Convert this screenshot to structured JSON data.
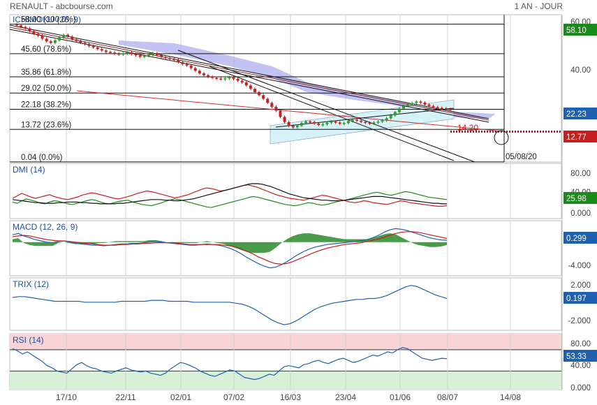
{
  "header": {
    "left": "RENAULT - abcbourse.com",
    "right": "1 AN - JOUR"
  },
  "colors": {
    "grid": "#d0d0d0",
    "axis_text": "#444444",
    "green": "#1a8a1a",
    "red": "#c81e1e",
    "blue": "#2060b0",
    "black": "#111111",
    "cloud": "#a8a8ee",
    "channel": "#d6f3f8",
    "rsi_high": "#f8d4d4",
    "rsi_low": "#d8efd8"
  },
  "x_axis": {
    "labels": [
      "17/10",
      "22/11",
      "02/01",
      "07/02",
      "16/03",
      "23/04",
      "01/06",
      "08/07",
      "14/08"
    ]
  },
  "chart_data": [
    {
      "type": "line",
      "title": "ICHIMOKU (26, 9)",
      "ylim": [
        0,
        62
      ],
      "y_ticks": [
        "60.00",
        "40.00"
      ],
      "price_badge_top": "58.10",
      "price_badge_current": "22.23",
      "price_badge_target": "12.77",
      "fibonacci": [
        {
          "price": 58.0,
          "label": "58.00  (100.0%)"
        },
        {
          "price": 45.6,
          "label": "45.60  (78.6%)"
        },
        {
          "price": 35.86,
          "label": "35.86  (61.8%)"
        },
        {
          "price": 29.02,
          "label": "29.02  (50.0%)"
        },
        {
          "price": 22.18,
          "label": "22.18  (38.2%)"
        },
        {
          "price": 13.72,
          "label": "13.72  (23.6%)"
        },
        {
          "price": 0.04,
          "label": "0.04  (0.0%)"
        }
      ],
      "annotation_value": "14.20",
      "annotation_date": "05/08/20",
      "price_series": [
        58,
        57.5,
        56.8,
        56.2,
        55.1,
        54.0,
        53.2,
        51.9,
        50.8,
        50.1,
        51.2,
        52.4,
        53.5,
        52.8,
        51.6,
        50.9,
        50.2,
        49.6,
        48.8,
        48.2,
        47.5,
        46.9,
        46.3,
        46.0,
        45.6,
        45.2,
        45.7,
        46.1,
        45.4,
        44.9,
        44.3,
        44.6,
        45.1,
        45.8,
        45.0,
        44.2,
        43.8,
        43.4,
        42.9,
        42.0,
        41.2,
        40.6,
        39.5,
        38.4,
        37.3,
        36.5,
        35.9,
        35.4,
        35.1,
        34.8,
        35.2,
        35.6,
        35.0,
        34.2,
        33.5,
        32.2,
        30.8,
        29.4,
        28.1,
        26.6,
        24.9,
        23.2,
        21.6,
        19.0,
        16.8,
        15.2,
        14.6,
        15.3,
        16.4,
        17.1,
        16.8,
        16.2,
        15.6,
        15.9,
        16.5,
        17.0,
        16.6,
        16.1,
        16.4,
        17.2,
        17.8,
        17.4,
        16.9,
        16.5,
        16.2,
        16.6,
        17.0,
        17.5,
        18.4,
        19.6,
        21.0,
        22.5,
        23.6,
        24.3,
        24.8,
        25.4,
        25.0,
        24.2,
        23.6,
        23.1,
        22.8,
        22.6,
        22.3,
        22.2
      ]
    },
    {
      "type": "line",
      "title": "DMI (14)",
      "ylim": [
        -5,
        85
      ],
      "y_ticks": [
        "80.00",
        "40.00",
        "0.000"
      ],
      "badge": "25.98",
      "series": [
        {
          "name": "DMI+",
          "color": "green",
          "values": [
            22,
            20,
            24,
            27,
            25,
            23,
            20,
            19,
            22,
            24,
            23,
            21,
            19,
            18,
            20,
            22,
            24,
            26,
            25,
            22,
            20,
            19,
            21,
            23,
            24,
            25,
            22,
            20,
            18,
            17,
            16,
            18,
            20,
            23,
            25,
            27,
            26,
            24,
            22,
            20,
            18,
            16,
            14,
            13,
            15,
            17,
            19,
            21,
            23,
            25,
            27,
            29,
            31,
            30,
            28,
            26,
            24,
            22,
            20,
            18,
            17,
            16,
            17,
            19,
            21,
            20,
            18,
            17,
            18,
            20,
            22,
            24,
            25,
            27,
            29,
            31,
            33,
            35,
            37,
            38,
            36,
            34,
            33,
            35,
            37,
            39,
            38,
            36,
            34,
            32,
            30,
            29,
            28,
            27,
            26
          ]
        },
        {
          "name": "DMI-",
          "color": "red",
          "values": [
            28,
            32,
            36,
            33,
            30,
            28,
            30,
            32,
            34,
            31,
            29,
            27,
            26,
            28,
            30,
            33,
            35,
            37,
            36,
            34,
            32,
            30,
            28,
            27,
            29,
            31,
            33,
            36,
            38,
            40,
            39,
            37,
            35,
            33,
            31,
            29,
            30,
            32,
            34,
            37,
            40,
            43,
            45,
            44,
            42,
            40,
            41,
            43,
            45,
            47,
            49,
            50,
            48,
            46,
            43,
            40,
            37,
            34,
            32,
            30,
            28,
            27,
            26,
            25,
            27,
            29,
            31,
            33,
            32,
            30,
            28,
            26,
            24,
            22,
            21,
            22,
            24,
            23,
            21,
            20,
            19,
            18,
            20,
            22,
            24,
            23,
            21,
            20,
            19,
            18,
            17,
            16,
            15,
            15,
            16
          ]
        },
        {
          "name": "ADX",
          "color": "black",
          "values": [
            26,
            25,
            24,
            23,
            22,
            21,
            21,
            20,
            20,
            20,
            21,
            21,
            22,
            22,
            22,
            21,
            21,
            20,
            20,
            19,
            19,
            19,
            19,
            20,
            20,
            21,
            22,
            23,
            24,
            25,
            26,
            26,
            26,
            25,
            25,
            24,
            24,
            25,
            26,
            27,
            29,
            31,
            33,
            35,
            37,
            39,
            41,
            43,
            45,
            47,
            49,
            51,
            52,
            52,
            51,
            49,
            47,
            44,
            41,
            38,
            35,
            33,
            31,
            29,
            28,
            27,
            26,
            25,
            25,
            24,
            24,
            24,
            25,
            26,
            27,
            28,
            29,
            30,
            31,
            31,
            31,
            30,
            29,
            28,
            27,
            26,
            25,
            24,
            23,
            22,
            21,
            20,
            20,
            19,
            19
          ]
        }
      ]
    },
    {
      "type": "area",
      "title": "MACD (12, 26, 9)",
      "ylim": [
        -5.5,
        3.5
      ],
      "y_ticks": [
        "0.299",
        "-4.000"
      ],
      "badge": "0.299",
      "series": [
        {
          "name": "MACD",
          "color": "blue",
          "values": [
            1.2,
            1.4,
            1.0,
            0.7,
            0.4,
            0.2,
            0.0,
            -0.1,
            0.1,
            0.2,
            0.0,
            -0.2,
            -0.3,
            -0.4,
            -0.5,
            -0.5,
            -0.6,
            -0.5,
            -0.4,
            -0.3,
            -0.3,
            -0.2,
            -0.2,
            -0.1,
            0.0,
            0.1,
            0.0,
            -0.1,
            -0.2,
            -0.3,
            -0.4,
            -0.5,
            -0.5,
            -0.4,
            -0.3,
            -0.4,
            -0.5,
            -0.7,
            -1.0,
            -1.4,
            -1.9,
            -2.5,
            -3.0,
            -3.5,
            -3.9,
            -4.2,
            -4.1,
            -3.7,
            -3.2,
            -2.6,
            -2.0,
            -1.5,
            -1.1,
            -0.8,
            -0.6,
            -0.4,
            -0.3,
            -0.2,
            -0.1,
            0.0,
            0.1,
            0.2,
            0.4,
            0.7,
            1.1,
            1.6,
            2.0,
            2.2,
            2.1,
            1.9,
            1.6,
            1.3,
            1.0,
            0.7,
            0.5,
            0.35,
            0.3
          ]
        },
        {
          "name": "Signal",
          "color": "red",
          "values": [
            0.9,
            1.0,
            1.1,
            1.0,
            0.8,
            0.6,
            0.4,
            0.3,
            0.2,
            0.2,
            0.1,
            0.0,
            -0.1,
            -0.2,
            -0.3,
            -0.4,
            -0.5,
            -0.5,
            -0.5,
            -0.4,
            -0.4,
            -0.3,
            -0.3,
            -0.2,
            -0.2,
            -0.1,
            -0.1,
            -0.1,
            -0.1,
            -0.2,
            -0.3,
            -0.4,
            -0.4,
            -0.4,
            -0.4,
            -0.4,
            -0.4,
            -0.5,
            -0.6,
            -0.8,
            -1.1,
            -1.5,
            -1.9,
            -2.4,
            -2.8,
            -3.2,
            -3.5,
            -3.6,
            -3.5,
            -3.2,
            -2.8,
            -2.4,
            -2.0,
            -1.6,
            -1.3,
            -1.0,
            -0.8,
            -0.6,
            -0.4,
            -0.3,
            -0.2,
            -0.1,
            0.1,
            0.3,
            0.5,
            0.8,
            1.1,
            1.4,
            1.6,
            1.7,
            1.7,
            1.6,
            1.4,
            1.2,
            1.0,
            0.8,
            0.6
          ]
        }
      ]
    },
    {
      "type": "line",
      "title": "TRIX (12)",
      "ylim": [
        -3.2,
        2.4
      ],
      "y_ticks": [
        "2.000",
        "-2.000"
      ],
      "badge": "0.197",
      "series": [
        {
          "name": "TRIX",
          "color": "blue",
          "values": [
            0.3,
            0.4,
            0.4,
            0.3,
            0.2,
            0.1,
            0.0,
            -0.1,
            -0.1,
            -0.1,
            -0.1,
            -0.1,
            -0.2,
            -0.2,
            -0.2,
            -0.2,
            -0.2,
            -0.2,
            -0.1,
            -0.1,
            -0.1,
            -0.1,
            -0.1,
            0.0,
            0.0,
            0.0,
            -0.1,
            -0.1,
            -0.1,
            -0.1,
            -0.2,
            -0.2,
            -0.2,
            -0.2,
            -0.2,
            -0.2,
            -0.2,
            -0.3,
            -0.4,
            -0.6,
            -0.9,
            -1.3,
            -1.7,
            -2.1,
            -2.4,
            -2.6,
            -2.5,
            -2.2,
            -1.8,
            -1.4,
            -1.0,
            -0.7,
            -0.5,
            -0.3,
            -0.2,
            -0.1,
            0.0,
            0.1,
            0.1,
            0.2,
            0.2,
            0.3,
            0.5,
            0.8,
            1.1,
            1.4,
            1.6,
            1.5,
            1.2,
            0.9,
            0.6,
            0.4,
            0.2
          ]
        }
      ]
    },
    {
      "type": "line",
      "title": "RSI (14)",
      "ylim": [
        -5,
        100
      ],
      "y_ticks": [
        "80.00",
        "40.00",
        "0.000"
      ],
      "badge": "53.33",
      "series": [
        {
          "name": "RSI",
          "color": "blue",
          "values": [
            72,
            68,
            62,
            66,
            60,
            54,
            48,
            40,
            36,
            30,
            28,
            26,
            34,
            42,
            46,
            40,
            36,
            34,
            30,
            28,
            26,
            30,
            33,
            36,
            32,
            30,
            28,
            30,
            26,
            24,
            22,
            26,
            34,
            40,
            46,
            44,
            40,
            36,
            30,
            26,
            22,
            20,
            24,
            28,
            32,
            30,
            24,
            18,
            16,
            14,
            16,
            20,
            24,
            22,
            30,
            38,
            40,
            38,
            36,
            42,
            44,
            48,
            50,
            46,
            44,
            48,
            52,
            54,
            50,
            46,
            48,
            52,
            56,
            60,
            58,
            62,
            66,
            64,
            70,
            74,
            72,
            66,
            60,
            54,
            52,
            50,
            52,
            54,
            53
          ]
        }
      ]
    }
  ]
}
